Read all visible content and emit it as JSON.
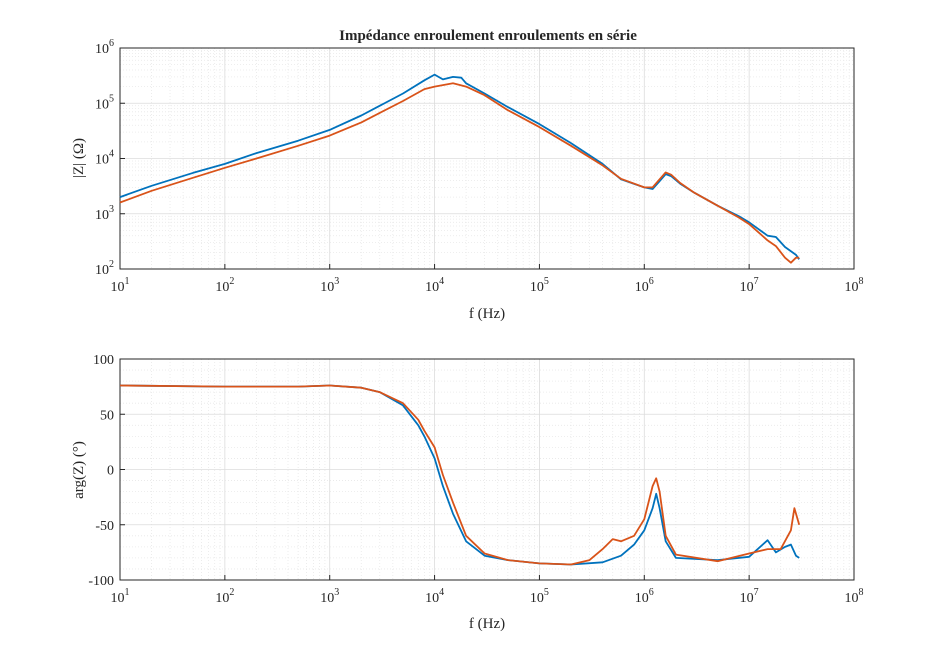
{
  "colors": {
    "series1": "#0072BD",
    "series2": "#D95319",
    "axis": "#262626",
    "grid": "#dcdcdc",
    "minor_grid": "#e8e8e8"
  },
  "chart_data": [
    {
      "type": "line",
      "title": "Impédance enroulement enroulements en série",
      "xlabel": "f (Hz)",
      "ylabel": "|Z| (Ω)",
      "xscale": "log",
      "yscale": "log",
      "xlim": [
        10,
        100000000
      ],
      "ylim": [
        100,
        1000000
      ],
      "grid": true,
      "legend": "none",
      "x_ticks": [
        {
          "base": "10",
          "exp": "1"
        },
        {
          "base": "10",
          "exp": "2"
        },
        {
          "base": "10",
          "exp": "3"
        },
        {
          "base": "10",
          "exp": "4"
        },
        {
          "base": "10",
          "exp": "5"
        },
        {
          "base": "10",
          "exp": "6"
        },
        {
          "base": "10",
          "exp": "7"
        },
        {
          "base": "10",
          "exp": "8"
        }
      ],
      "y_ticks": [
        {
          "base": "10",
          "exp": "2"
        },
        {
          "base": "10",
          "exp": "3"
        },
        {
          "base": "10",
          "exp": "4"
        },
        {
          "base": "10",
          "exp": "5"
        },
        {
          "base": "10",
          "exp": "6"
        }
      ],
      "series": [
        {
          "color": "#0072BD",
          "points": [
            [
              10,
              2000
            ],
            [
              20,
              3200
            ],
            [
              50,
              5500
            ],
            [
              100,
              8000
            ],
            [
              200,
              12500
            ],
            [
              500,
              21000
            ],
            [
              1000,
              33000
            ],
            [
              2000,
              60000
            ],
            [
              5000,
              150000
            ],
            [
              8000,
              260000
            ],
            [
              10000,
              330000
            ],
            [
              12000,
              270000
            ],
            [
              15000,
              300000
            ],
            [
              18000,
              290000
            ],
            [
              20000,
              230000
            ],
            [
              30000,
              150000
            ],
            [
              50000,
              85000
            ],
            [
              100000,
              42000
            ],
            [
              200000,
              19000
            ],
            [
              400000,
              8000
            ],
            [
              600000,
              4200
            ],
            [
              1000000,
              3000
            ],
            [
              1200000,
              2800
            ],
            [
              1400000,
              3900
            ],
            [
              1600000,
              5200
            ],
            [
              1800000,
              4800
            ],
            [
              2200000,
              3500
            ],
            [
              3000000,
              2400
            ],
            [
              5000000,
              1400
            ],
            [
              8000000,
              900
            ],
            [
              10000000,
              700
            ],
            [
              15000000,
              400
            ],
            [
              18000000,
              380
            ],
            [
              22000000,
              250
            ],
            [
              28000000,
              180
            ],
            [
              30000000,
              150
            ]
          ]
        },
        {
          "color": "#D95319",
          "points": [
            [
              10,
              1600
            ],
            [
              20,
              2600
            ],
            [
              50,
              4500
            ],
            [
              100,
              6800
            ],
            [
              200,
              10000
            ],
            [
              500,
              17000
            ],
            [
              1000,
              26000
            ],
            [
              2000,
              45000
            ],
            [
              5000,
              110000
            ],
            [
              8000,
              180000
            ],
            [
              10000,
              200000
            ],
            [
              15000,
              230000
            ],
            [
              20000,
              200000
            ],
            [
              30000,
              140000
            ],
            [
              50000,
              75000
            ],
            [
              100000,
              37000
            ],
            [
              200000,
              17000
            ],
            [
              400000,
              7500
            ],
            [
              600000,
              4300
            ],
            [
              1000000,
              3000
            ],
            [
              1200000,
              3000
            ],
            [
              1400000,
              4200
            ],
            [
              1600000,
              5600
            ],
            [
              1800000,
              5100
            ],
            [
              2200000,
              3600
            ],
            [
              3000000,
              2400
            ],
            [
              5000000,
              1400
            ],
            [
              8000000,
              850
            ],
            [
              10000000,
              650
            ],
            [
              15000000,
              330
            ],
            [
              18000000,
              260
            ],
            [
              22000000,
              160
            ],
            [
              25000000,
              130
            ],
            [
              28000000,
              160
            ],
            [
              30000000,
              160
            ]
          ]
        }
      ]
    },
    {
      "type": "line",
      "title": "",
      "xlabel": "f (Hz)",
      "ylabel": "arg(Z) (°)",
      "xscale": "log",
      "yscale": "linear",
      "xlim": [
        10,
        100000000
      ],
      "ylim": [
        -100,
        100
      ],
      "grid": true,
      "legend": "none",
      "x_ticks": [
        {
          "base": "10",
          "exp": "1"
        },
        {
          "base": "10",
          "exp": "2"
        },
        {
          "base": "10",
          "exp": "3"
        },
        {
          "base": "10",
          "exp": "4"
        },
        {
          "base": "10",
          "exp": "5"
        },
        {
          "base": "10",
          "exp": "6"
        },
        {
          "base": "10",
          "exp": "7"
        },
        {
          "base": "10",
          "exp": "8"
        }
      ],
      "y_ticks": [
        "100",
        "50",
        "0",
        "-50",
        "-100"
      ],
      "y_tick_values": [
        100,
        50,
        0,
        -50,
        -100
      ],
      "series": [
        {
          "color": "#0072BD",
          "points": [
            [
              10,
              76
            ],
            [
              100,
              75
            ],
            [
              500,
              75
            ],
            [
              1000,
              76
            ],
            [
              2000,
              74
            ],
            [
              3000,
              70
            ],
            [
              5000,
              58
            ],
            [
              7000,
              40
            ],
            [
              8000,
              30
            ],
            [
              10000,
              10
            ],
            [
              12000,
              -15
            ],
            [
              15000,
              -40
            ],
            [
              20000,
              -65
            ],
            [
              30000,
              -78
            ],
            [
              50000,
              -82
            ],
            [
              100000,
              -85
            ],
            [
              200000,
              -86
            ],
            [
              400000,
              -84
            ],
            [
              600000,
              -78
            ],
            [
              800000,
              -68
            ],
            [
              1000000,
              -55
            ],
            [
              1200000,
              -35
            ],
            [
              1300000,
              -22
            ],
            [
              1400000,
              -35
            ],
            [
              1600000,
              -65
            ],
            [
              2000000,
              -80
            ],
            [
              5000000,
              -82
            ],
            [
              10000000,
              -79
            ],
            [
              15000000,
              -64
            ],
            [
              18000000,
              -75
            ],
            [
              22000000,
              -70
            ],
            [
              25000000,
              -68
            ],
            [
              28000000,
              -78
            ],
            [
              30000000,
              -80
            ]
          ]
        },
        {
          "color": "#D95319",
          "points": [
            [
              10,
              76
            ],
            [
              100,
              75
            ],
            [
              500,
              75
            ],
            [
              1000,
              76
            ],
            [
              2000,
              74
            ],
            [
              3000,
              70
            ],
            [
              5000,
              60
            ],
            [
              7000,
              45
            ],
            [
              8000,
              35
            ],
            [
              10000,
              20
            ],
            [
              12000,
              -5
            ],
            [
              15000,
              -30
            ],
            [
              20000,
              -60
            ],
            [
              30000,
              -76
            ],
            [
              50000,
              -82
            ],
            [
              100000,
              -85
            ],
            [
              200000,
              -86
            ],
            [
              300000,
              -82
            ],
            [
              400000,
              -72
            ],
            [
              500000,
              -63
            ],
            [
              600000,
              -65
            ],
            [
              800000,
              -60
            ],
            [
              1000000,
              -45
            ],
            [
              1200000,
              -15
            ],
            [
              1300000,
              -8
            ],
            [
              1400000,
              -20
            ],
            [
              1600000,
              -60
            ],
            [
              2000000,
              -77
            ],
            [
              5000000,
              -83
            ],
            [
              10000000,
              -76
            ],
            [
              15000000,
              -72
            ],
            [
              20000000,
              -72
            ],
            [
              25000000,
              -55
            ],
            [
              27000000,
              -35
            ],
            [
              30000000,
              -50
            ]
          ]
        }
      ]
    }
  ]
}
